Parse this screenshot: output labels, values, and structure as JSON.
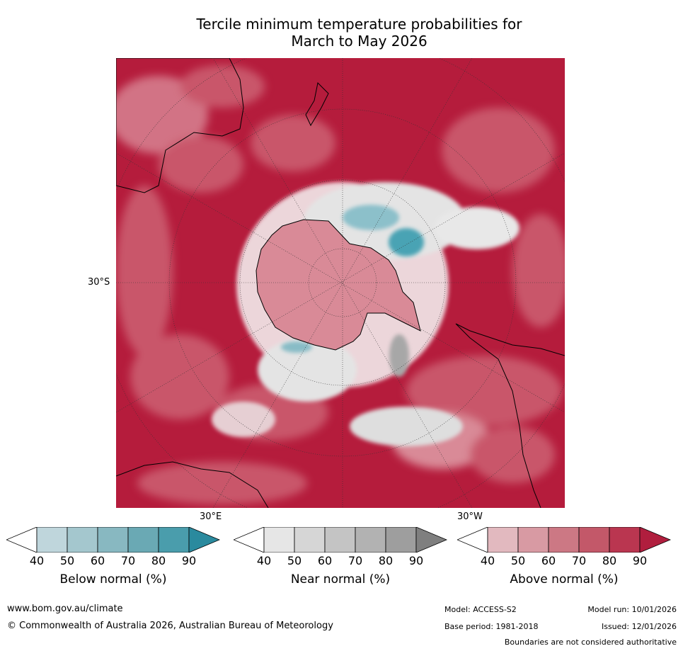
{
  "title": {
    "line1": "Tercile minimum temperature probabilities for",
    "line2": "March to May 2026"
  },
  "map": {
    "labels": {
      "lat_30s": "30°S",
      "lon_30e": "30°E",
      "lon_30w": "30°W"
    },
    "colors": {
      "above_strong": "#b51c3c",
      "above_mid": "#c9566b",
      "above_light": "#d98a97",
      "near": "#d8d8d8",
      "below": "#4aa3b4",
      "ice": "#f4eaec"
    }
  },
  "colorbars": [
    {
      "title": "Below normal (%)",
      "ticks": [
        "40",
        "50",
        "60",
        "70",
        "80",
        "90"
      ],
      "colors": [
        "#ffffff",
        "#bfd6dc",
        "#a4c7ce",
        "#88b8c1",
        "#6aa9b4",
        "#4a9dac",
        "#2a8a9e"
      ]
    },
    {
      "title": "Near normal (%)",
      "ticks": [
        "40",
        "50",
        "60",
        "70",
        "80",
        "90"
      ],
      "colors": [
        "#ffffff",
        "#e6e6e6",
        "#d6d6d6",
        "#c4c4c4",
        "#b2b2b2",
        "#9e9e9e",
        "#7f7f7f"
      ]
    },
    {
      "title": "Above normal (%)",
      "ticks": [
        "40",
        "50",
        "60",
        "70",
        "80",
        "90"
      ],
      "colors": [
        "#ffffff",
        "#e2b9bf",
        "#d89aa3",
        "#cc7884",
        "#c35869",
        "#ba3650",
        "#b01e3e"
      ]
    }
  ],
  "footer": {
    "url": "www.bom.gov.au/climate",
    "copyright": "© Commonwealth of Australia 2026, Australian Bureau of Meteorology",
    "model": "Model: ACCESS-S2",
    "model_run": "Model run: 10/01/2026",
    "base_period": "Base period: 1981-2018",
    "issued": "Issued: 12/01/2026",
    "disclaimer": "Boundaries are not considered authoritative"
  }
}
